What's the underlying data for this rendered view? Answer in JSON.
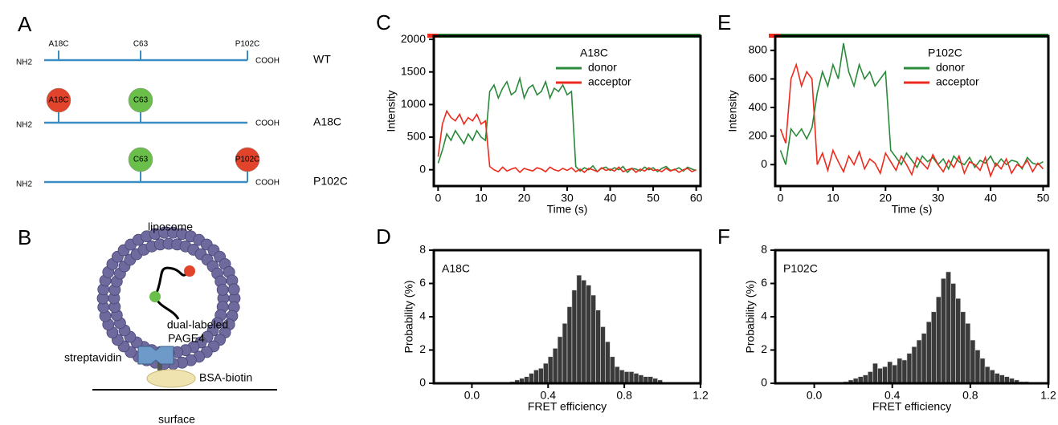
{
  "panel_a": {
    "letter": "A",
    "site_labels": [
      "A18C",
      "C63",
      "P102C"
    ],
    "constructs": [
      {
        "name": "WT",
        "n_term": "NH2",
        "c_term": "COOH"
      },
      {
        "name": "A18C",
        "n_term": "NH2",
        "c_term": "COOH",
        "dyes": [
          {
            "label": "A18C",
            "color": "#e2432b"
          },
          {
            "label": "C63",
            "color": "#6abf4b"
          }
        ]
      },
      {
        "name": "P102C",
        "n_term": "NH2",
        "c_term": "COOH",
        "dyes": [
          {
            "label": "C63",
            "color": "#6abf4b"
          },
          {
            "label": "P102C",
            "color": "#e2432b"
          }
        ]
      }
    ]
  },
  "panel_b": {
    "letter": "B",
    "liposome": "liposome",
    "protein": [
      "dual-labeled",
      "PAGE4"
    ],
    "streptavidin": "streptavidin",
    "bsa": "BSA-biotin",
    "surface": "surface"
  },
  "chart_data": [
    {
      "type": "line",
      "panel": "C",
      "annotation": "A18C",
      "x_label": "Time (s)",
      "y_label": "Intensity",
      "legend": "upper right",
      "xlim": [
        -1,
        61
      ],
      "xticks": [
        0,
        10,
        20,
        30,
        40,
        50,
        60
      ],
      "ylim": [
        -250,
        2050
      ],
      "yticks": [
        0,
        500,
        1000,
        1500,
        2000
      ],
      "x": [
        0,
        1,
        2,
        3,
        4,
        5,
        6,
        7,
        8,
        9,
        10,
        11,
        12,
        13,
        14,
        15,
        16,
        17,
        18,
        19,
        20,
        21,
        22,
        23,
        24,
        25,
        26,
        27,
        28,
        29,
        30,
        31,
        32,
        33,
        34,
        35,
        36,
        37,
        38,
        39,
        40,
        41,
        42,
        43,
        44,
        45,
        46,
        47,
        48,
        49,
        50,
        51,
        52,
        53,
        54,
        55,
        56,
        57,
        58,
        59,
        60
      ],
      "series": [
        {
          "name": "donor",
          "color": "#2a8a3a",
          "values": [
            100,
            300,
            550,
            450,
            600,
            500,
            400,
            550,
            450,
            600,
            500,
            450,
            1200,
            1300,
            1100,
            1250,
            1350,
            1150,
            1200,
            1400,
            1100,
            1250,
            1300,
            1150,
            1200,
            1350,
            1100,
            1250,
            1200,
            1300,
            1150,
            1200,
            50,
            -20,
            30,
            0,
            60,
            -30,
            20,
            40,
            -10,
            30,
            0,
            50,
            -40,
            20,
            10,
            -20,
            40,
            0,
            30,
            -30,
            20,
            50,
            -10,
            0,
            30,
            -20,
            40,
            10,
            -10
          ]
        },
        {
          "name": "acceptor",
          "color": "#ee2a1e",
          "values": [
            200,
            700,
            900,
            800,
            750,
            850,
            700,
            800,
            750,
            850,
            700,
            750,
            50,
            0,
            -30,
            40,
            -20,
            10,
            30,
            -40,
            20,
            0,
            -20,
            30,
            10,
            -30,
            40,
            0,
            -20,
            20,
            -10,
            30,
            -30,
            10,
            -40,
            20,
            0,
            -30,
            30,
            -10,
            10,
            -20,
            40,
            -30,
            0,
            20,
            -40,
            10,
            -20,
            30,
            -10,
            0,
            -30,
            20,
            -20,
            10,
            -40,
            0,
            20,
            -30,
            0
          ]
        }
      ]
    },
    {
      "type": "line",
      "panel": "E",
      "annotation": "P102C",
      "x_label": "Time (s)",
      "y_label": "Intensity",
      "legend": "upper right",
      "xlim": [
        -1,
        51
      ],
      "xticks": [
        0,
        10,
        20,
        30,
        40,
        50
      ],
      "ylim": [
        -150,
        900
      ],
      "yticks": [
        0,
        200,
        400,
        600,
        800
      ],
      "x": [
        0,
        1,
        2,
        3,
        4,
        5,
        6,
        7,
        8,
        9,
        10,
        11,
        12,
        13,
        14,
        15,
        16,
        17,
        18,
        19,
        20,
        21,
        22,
        23,
        24,
        25,
        26,
        27,
        28,
        29,
        30,
        31,
        32,
        33,
        34,
        35,
        36,
        37,
        38,
        39,
        40,
        41,
        42,
        43,
        44,
        45,
        46,
        47,
        48,
        49,
        50
      ],
      "series": [
        {
          "name": "donor",
          "color": "#2a8a3a",
          "values": [
            100,
            0,
            250,
            200,
            250,
            180,
            260,
            500,
            650,
            550,
            700,
            600,
            850,
            650,
            550,
            700,
            600,
            650,
            550,
            600,
            650,
            100,
            50,
            0,
            80,
            30,
            -20,
            60,
            20,
            50,
            0,
            40,
            -30,
            60,
            20,
            0,
            50,
            -20,
            30,
            10,
            60,
            -10,
            40,
            0,
            30,
            20,
            -30,
            50,
            10,
            0,
            20
          ]
        },
        {
          "name": "acceptor",
          "color": "#ee2a1e",
          "values": [
            250,
            150,
            600,
            700,
            550,
            650,
            600,
            0,
            80,
            -40,
            100,
            20,
            -50,
            60,
            0,
            90,
            -30,
            40,
            10,
            -60,
            80,
            20,
            -40,
            60,
            0,
            -70,
            50,
            10,
            -30,
            70,
            0,
            -50,
            30,
            -20,
            60,
            -60,
            20,
            0,
            -40,
            50,
            -80,
            10,
            -30,
            40,
            -60,
            0,
            -20,
            30,
            -50,
            10,
            -30
          ]
        }
      ]
    },
    {
      "type": "histogram",
      "panel": "D",
      "annotation": "A18C",
      "x_label": "FRET efficiency",
      "y_label": "Probability (%)",
      "color": "#3a3a3a",
      "xlim": [
        -0.2,
        1.2
      ],
      "xticks": [
        {
          "value": 0,
          "label": "0.0"
        },
        0.4,
        0.8,
        1.2
      ],
      "ylim": [
        0,
        8
      ],
      "yticks": [
        0,
        2,
        4,
        6,
        8
      ],
      "bins": [
        0.2,
        0.225,
        0.25,
        0.275,
        0.3,
        0.325,
        0.35,
        0.375,
        0.4,
        0.425,
        0.45,
        0.475,
        0.5,
        0.525,
        0.55,
        0.575,
        0.6,
        0.625,
        0.65,
        0.675,
        0.7,
        0.725,
        0.75,
        0.775,
        0.8,
        0.825,
        0.85,
        0.875,
        0.9,
        0.925,
        0.95,
        0.975,
        1.0
      ],
      "values": [
        0.1,
        0.2,
        0.3,
        0.4,
        0.6,
        0.8,
        0.9,
        1.2,
        1.6,
        2.1,
        2.8,
        3.6,
        4.6,
        5.6,
        6.5,
        6.2,
        5.9,
        5.3,
        4.4,
        3.4,
        2.5,
        1.6,
        1.0,
        0.8,
        0.7,
        0.7,
        0.6,
        0.5,
        0.4,
        0.4,
        0.3,
        0.2
      ]
    },
    {
      "type": "histogram",
      "panel": "F",
      "annotation": "P102C",
      "x_label": "FRET efficiency",
      "y_label": "Probability (%)",
      "color": "#3a3a3a",
      "xlim": [
        -0.2,
        1.2
      ],
      "xticks": [
        {
          "value": 0,
          "label": "0.0"
        },
        0.4,
        0.8,
        1.2
      ],
      "ylim": [
        0,
        8
      ],
      "yticks": [
        0,
        2,
        4,
        6,
        8
      ],
      "bins": [
        0.15,
        0.175,
        0.2,
        0.225,
        0.25,
        0.275,
        0.3,
        0.325,
        0.35,
        0.375,
        0.4,
        0.425,
        0.45,
        0.475,
        0.5,
        0.525,
        0.55,
        0.575,
        0.6,
        0.625,
        0.65,
        0.675,
        0.7,
        0.725,
        0.75,
        0.775,
        0.8,
        0.825,
        0.85,
        0.875,
        0.9,
        0.925,
        0.95,
        0.975,
        1.0,
        1.025,
        1.05,
        1.075,
        1.1
      ],
      "values": [
        0.1,
        0.2,
        0.3,
        0.4,
        0.5,
        0.7,
        1.2,
        0.9,
        1.0,
        1.3,
        1.1,
        1.5,
        1.4,
        1.8,
        2.2,
        2.6,
        3.0,
        3.7,
        4.3,
        5.2,
        6.3,
        6.7,
        6.0,
        5.1,
        4.3,
        3.6,
        2.6,
        2.0,
        1.5,
        1.0,
        0.8,
        0.6,
        0.5,
        0.4,
        0.3,
        0.2,
        0.1,
        0.1
      ]
    }
  ]
}
